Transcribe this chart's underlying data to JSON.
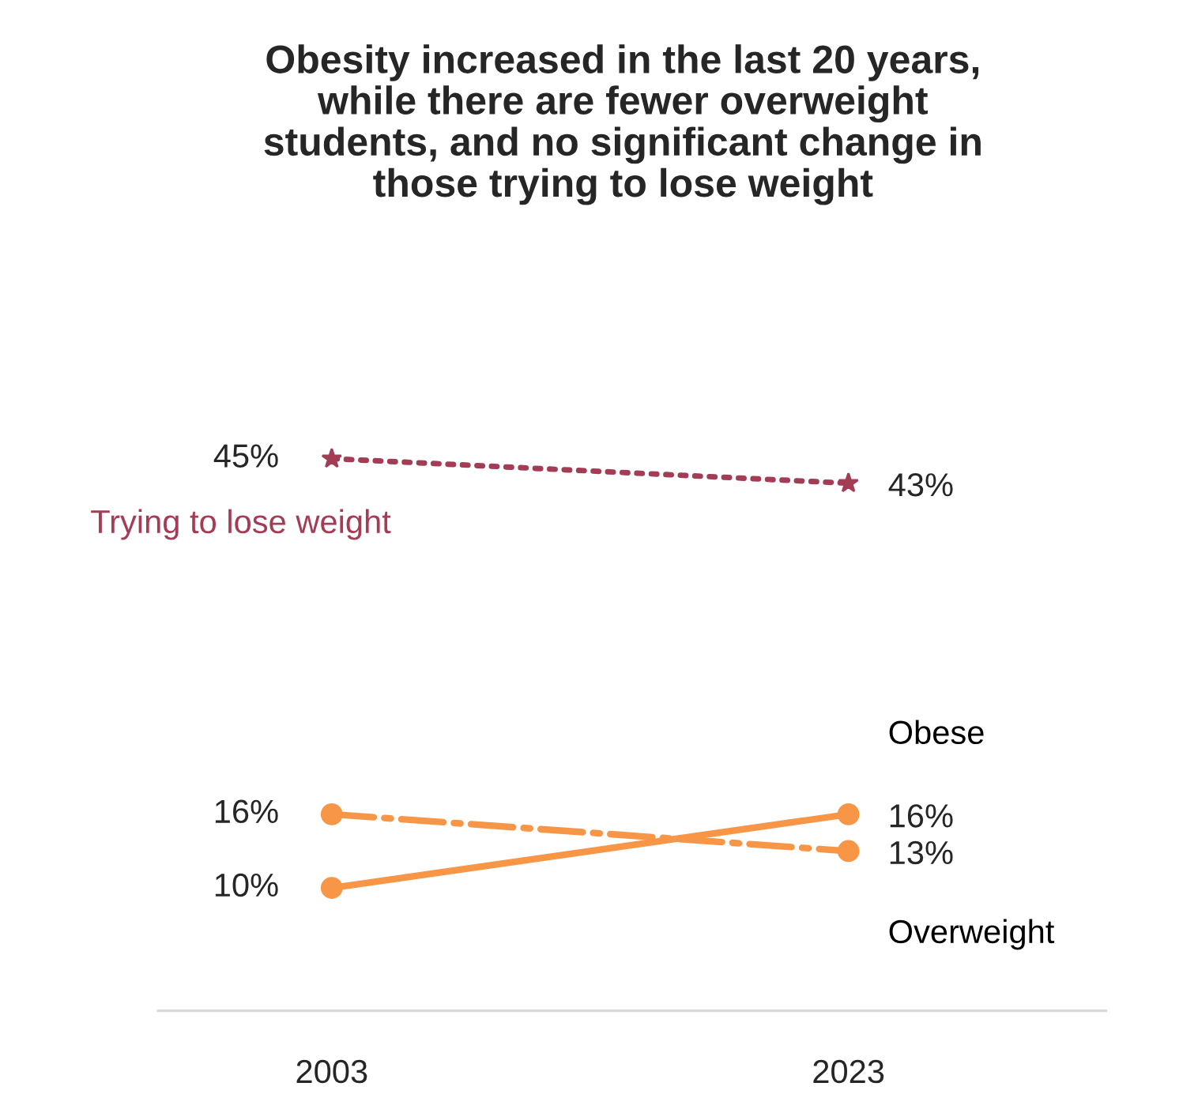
{
  "chart_data": {
    "type": "line",
    "title": "Obesity increased in the last 20 years,\nwhile there are fewer overweight\nstudents, and no significant change in\nthose trying to lose weight",
    "categories": [
      "2003",
      "2023"
    ],
    "series": [
      {
        "name": "Trying to lose weight",
        "color": "#a33c55",
        "values": [
          45,
          43
        ],
        "value_labels": [
          "45%",
          "43%"
        ],
        "line_style": "dotted",
        "marker": "star"
      },
      {
        "name": "Obese",
        "color": "#f79646",
        "values": [
          10,
          16
        ],
        "value_labels": [
          "10%",
          "16%"
        ],
        "line_style": "solid",
        "marker": "circle"
      },
      {
        "name": "Overweight",
        "color": "#f79646",
        "values": [
          16,
          13
        ],
        "value_labels": [
          "16%",
          "13%"
        ],
        "line_style": "dashdot",
        "marker": "circle"
      }
    ],
    "tick_labels": "x",
    "grid": false,
    "legend": false
  }
}
